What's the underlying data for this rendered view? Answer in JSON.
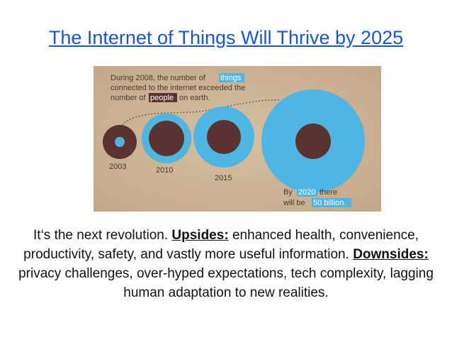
{
  "slide": {
    "title": "The Internet of Things Will Thrive by 2025"
  },
  "infographic": {
    "headline": {
      "line1_prefix": "During 2008, the number of",
      "line1_highlight": "things",
      "line2": "connected to the internet exceeded the",
      "line3_prefix": "number of",
      "line3_highlight": "people",
      "line3_suffix": "on earth."
    },
    "years": [
      "2003",
      "2010",
      "2015"
    ],
    "footnote": {
      "line1_prefix": "By",
      "line1_highlight": "2020",
      "line1_suffix": "there",
      "line2_prefix": "will be",
      "line2_highlight": "50 billion."
    },
    "colors": {
      "background": "#cdb596",
      "things": "#4fb5e2",
      "people": "#5a3330",
      "highlight_things": "#4fb5e2",
      "highlight_people": "#5a3330"
    }
  },
  "caption": {
    "intro": "It‘s the next revolution.",
    "upsides_label": "Upsides:",
    "upsides_text": "enhanced health, convenience, productivity, safety, and vastly more useful information.",
    "downsides_label": "Downsides:",
    "downsides_text": "privacy challenges, over-hyped expectations, tech complexity, lagging human adaptation to new realities."
  }
}
